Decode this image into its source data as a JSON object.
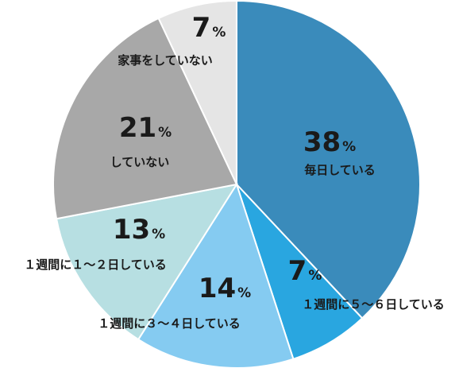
{
  "chart_data": {
    "type": "pie",
    "start_angle_deg": 0,
    "direction": "clockwise",
    "slices": [
      {
        "value": 38,
        "value_label": "38",
        "unit": "%",
        "label": "毎日している",
        "color": "#3a8bbb"
      },
      {
        "value": 7,
        "value_label": "7",
        "unit": "%",
        "label": "１週間に５～６日している",
        "color": "#29a6e0"
      },
      {
        "value": 14,
        "value_label": "14",
        "unit": "%",
        "label": "１週間に３～４日している",
        "color": "#85cbf1"
      },
      {
        "value": 13,
        "value_label": "13",
        "unit": "%",
        "label": "１週間に１～２日している",
        "color": "#b7dfe2"
      },
      {
        "value": 21,
        "value_label": "21",
        "unit": "%",
        "label": "していない",
        "color": "#a8a8a8"
      },
      {
        "value": 7,
        "value_label": "7",
        "unit": "%",
        "label": "家事をしていない",
        "color": "#e5e5e5"
      }
    ]
  }
}
